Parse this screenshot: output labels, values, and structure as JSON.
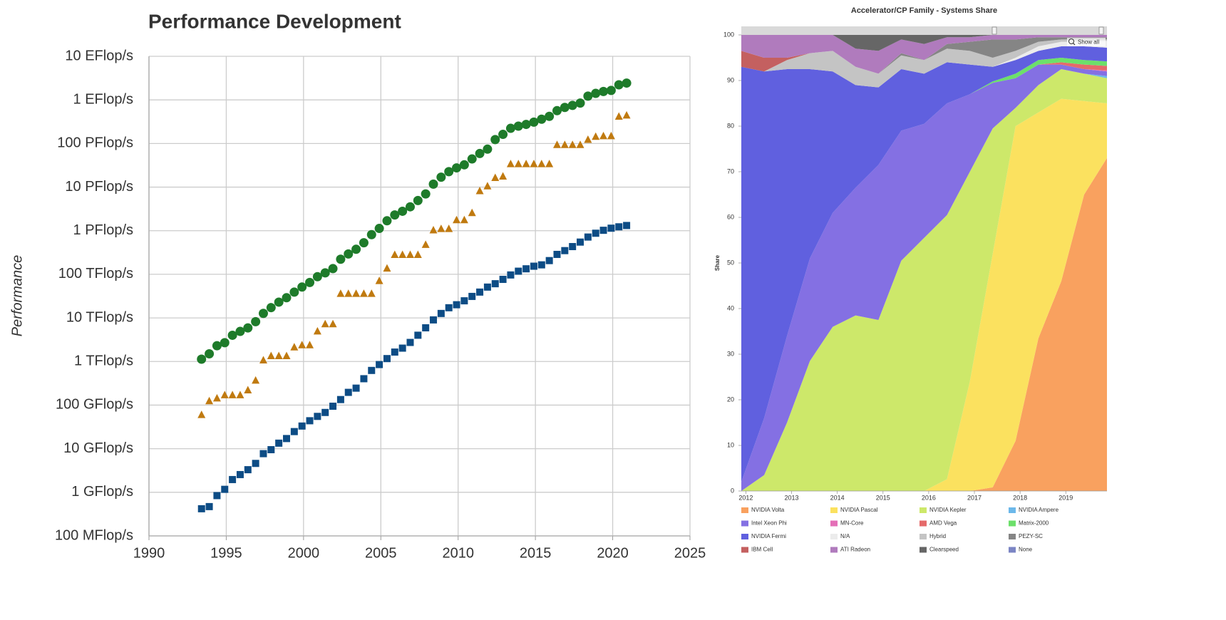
{
  "chart_data": [
    {
      "type": "scatter",
      "title": "Performance Development",
      "y_label": "Performance",
      "x": [
        1993.4,
        1993.9,
        1994.4,
        1994.9,
        1995.4,
        1995.9,
        1996.4,
        1996.9,
        1997.4,
        1997.9,
        1998.4,
        1998.9,
        1999.4,
        1999.9,
        2000.4,
        2000.9,
        2001.4,
        2001.9,
        2002.4,
        2002.9,
        2003.4,
        2003.9,
        2004.4,
        2004.9,
        2005.4,
        2005.9,
        2006.4,
        2006.9,
        2007.4,
        2007.9,
        2008.4,
        2008.9,
        2009.4,
        2009.9,
        2010.4,
        2010.9,
        2011.4,
        2011.9,
        2012.4,
        2012.9,
        2013.4,
        2013.9,
        2014.4,
        2014.9,
        2015.4,
        2015.9,
        2016.4,
        2016.9,
        2017.4,
        2017.9,
        2018.4,
        2018.9,
        2019.4,
        2019.9,
        2020.4,
        2020.9
      ],
      "series": [
        {
          "color": "#1e7b2a",
          "marker": "circle",
          "values": [
            1130000000000.0,
            1500000000000.0,
            2300000000000.0,
            2700000000000.0,
            4000000000000.0,
            4900000000000.0,
            5900000000000.0,
            8200000000000.0,
            12700000000000.0,
            17200000000000.0,
            23000000000000.0,
            29000000000000.0,
            39000000000000.0,
            51000000000000.0,
            65000000000000.0,
            88000000000000.0,
            108000000000000.0,
            135000000000000.0,
            222000000000000.0,
            293000000000000.0,
            375000000000000.0,
            529000000000000.0,
            813000000000000.0,
            1127000000000000.0,
            1690000000000000.0,
            2300000000000000.0,
            2790000000000000.0,
            3530000000000000.0,
            4920000000000000.0,
            6970000000000000.0,
            1.17e+16,
            1.69e+16,
            2.26e+16,
            2.76e+16,
            3.24e+16,
            4.42e+16,
            5.89e+16,
            7.42e+16,
            1.23e+17,
            1.62e+17,
            2.23e+17,
            2.5e+17,
            2.74e+17,
            3.09e+17,
            3.61e+17,
            4.2e+17,
            5.66e+17,
            6.72e+17,
            7.49e+17,
            8.45e+17,
            1.22e+18,
            1.41e+18,
            1.56e+18,
            1.65e+18,
            2.22e+18,
            2.43e+18
          ]
        },
        {
          "color": "#c07a10",
          "marker": "triangle",
          "values": [
            59700000000.0,
            124000000000.0,
            143700000000.0,
            170000000000.0,
            170000000000.0,
            170000000000.0,
            220400000000.0,
            368000000000.0,
            1068000000000.0,
            1338000000000.0,
            1338000000000.0,
            1338000000000.0,
            2121000000000.0,
            2379000000000.0,
            2379000000000.0,
            4938000000000.0,
            7226000000000.0,
            7226000000000.0,
            35860000000000.0,
            35860000000000.0,
            35860000000000.0,
            35860000000000.0,
            35860000000000.0,
            70720000000000.0,
            136800000000000.0,
            280600000000000.0,
            280600000000000.0,
            280600000000000.0,
            280600000000000.0,
            478200000000000.0,
            1026000000000000.0,
            1105000000000000.0,
            1105000000000000.0,
            1759000000000000.0,
            1759000000000000.0,
            2566000000000000.0,
            8162000000000000.0,
            1.051e+16,
            1.6324e+16,
            1.759e+16,
            3.3862e+16,
            3.3862e+16,
            3.3862e+16,
            3.3862e+16,
            3.3862e+16,
            3.3862e+16,
            9.3015e+16,
            9.3015e+16,
            9.3015e+16,
            9.3015e+16,
            1.223e+17,
            1.435e+17,
            1.486e+17,
            1.486e+17,
            4.1553e+17,
            4.4201e+17
          ]
        },
        {
          "color": "#0d4c85",
          "marker": "square",
          "values": [
            420000000.0,
            470000000.0,
            840000000.0,
            1170000000.0,
            1960000000.0,
            2550000000.0,
            3300000000.0,
            4600000000.0,
            7700000000.0,
            9500000000.0,
            13400000000.0,
            17100000000.0,
            24700000000.0,
            33100000000.0,
            43800000000.0,
            55100000000.0,
            67800000000.0,
            94300000000.0,
            134000000000.0,
            196000000000.0,
            245000000000.0,
            403000000000.0,
            624000000000.0,
            851000000000.0,
            1166000000000.0,
            1646000000000.0,
            2026000000000.0,
            2737000000000.0,
            4005000000000.0,
            5929000000000.0,
            9000000000000.0,
            12640000000000.0,
            17100000000000.0,
            20050000000000.0,
            24670000000000.0,
            31110000000000.0,
            39100000000000.0,
            50900000000000.0,
            60800000000000.0,
            76500000000000.0,
            96600000000000.0,
            117800000000000.0,
            133700000000000.0,
            153400000000000.0,
            164800000000000.0,
            206300000000000.0,
            286100000000000.0,
            349300000000000.0,
            432200000000000.0,
            548300000000000.0,
            715600000000000.0,
            874800000000000.0,
            1022000000000000.0,
            1142000000000000.0,
            1228000000000000.0,
            1317000000000000.0
          ]
        }
      ],
      "xlim": [
        1990,
        2025
      ],
      "xticks": [
        1990,
        1995,
        2000,
        2005,
        2010,
        2015,
        2020,
        2025
      ],
      "y_scale": "log",
      "ylim": [
        100000000.0,
        1e+19
      ],
      "yticks": [
        {
          "value": 100000000.0,
          "label": "100 MFlop/s"
        },
        {
          "value": 1000000000.0,
          "label": "1 GFlop/s"
        },
        {
          "value": 10000000000.0,
          "label": "10 GFlop/s"
        },
        {
          "value": 100000000000.0,
          "label": "100 GFlop/s"
        },
        {
          "value": 1000000000000.0,
          "label": "1 TFlop/s"
        },
        {
          "value": 10000000000000.0,
          "label": "10 TFlop/s"
        },
        {
          "value": 100000000000000.0,
          "label": "100 TFlop/s"
        },
        {
          "value": 1000000000000000.0,
          "label": "1 PFlop/s"
        },
        {
          "value": 1e+16,
          "label": "10 PFlop/s"
        },
        {
          "value": 1e+17,
          "label": "100 PFlop/s"
        },
        {
          "value": 1e+18,
          "label": "1 EFlop/s"
        },
        {
          "value": 1e+19,
          "label": "10 EFlop/s"
        }
      ],
      "grid": true
    },
    {
      "type": "area",
      "stacked": true,
      "title": "Accelerator/CP Family - Systems Share",
      "y_label": "Share",
      "reset_label": "Show all",
      "x": [
        2011.9,
        2012.4,
        2012.9,
        2013.4,
        2013.9,
        2014.4,
        2014.9,
        2015.4,
        2015.9,
        2016.4,
        2016.9,
        2017.4,
        2017.9,
        2018.4,
        2018.9,
        2019.4,
        2019.9
      ],
      "xlim": [
        2011.9,
        2019.9
      ],
      "xticks": [
        2012,
        2013,
        2014,
        2015,
        2016,
        2017,
        2018,
        2019
      ],
      "ylim": [
        0,
        100
      ],
      "yticks": [
        0,
        10,
        20,
        30,
        40,
        50,
        60,
        70,
        80,
        90,
        100
      ],
      "legend": "bottom",
      "series": [
        {
          "name": "NVIDIA Volta",
          "color": "#f9a15f",
          "values": [
            0,
            0,
            0,
            0,
            0,
            0,
            0,
            0,
            0,
            0,
            0,
            0.8,
            11,
            33.5,
            46,
            65,
            73
          ]
        },
        {
          "name": "NVIDIA Pascal",
          "color": "#fbe15f",
          "values": [
            0,
            0,
            0,
            0,
            0,
            0,
            0,
            0,
            0,
            2.6,
            24,
            51.2,
            69,
            49.5,
            40,
            20.5,
            12
          ]
        },
        {
          "name": "NVIDIA Kepler",
          "color": "#cde86a",
          "values": [
            0,
            3.5,
            15,
            28.5,
            36,
            38.5,
            37.5,
            50.5,
            55.5,
            57.9,
            46,
            27.5,
            4,
            6,
            6.5,
            6,
            5.5
          ]
        },
        {
          "name": "NVIDIA Ampere",
          "color": "#6cb8ea",
          "values": [
            0,
            0,
            0,
            0,
            0,
            0,
            0,
            0,
            0,
            0,
            0,
            0,
            0,
            0,
            0,
            0,
            0.5
          ]
        },
        {
          "name": "Intel Xeon Phi",
          "color": "#8470e3",
          "values": [
            2,
            12.5,
            19,
            22.5,
            25,
            28,
            34,
            28.5,
            25,
            24.5,
            17,
            10,
            6.5,
            4.5,
            1,
            1,
            1
          ]
        },
        {
          "name": "MN-Core",
          "color": "#e46fb7",
          "values": [
            0,
            0,
            0,
            0,
            0,
            0,
            0,
            0,
            0,
            0,
            0,
            0,
            0,
            0,
            0,
            0,
            0.2
          ]
        },
        {
          "name": "AMD Vega",
          "color": "#e56a6a",
          "values": [
            0,
            0,
            0,
            0,
            0,
            0,
            0,
            0,
            0,
            0,
            0,
            0,
            0,
            0,
            0.5,
            1,
            1
          ]
        },
        {
          "name": "Matrix-2000",
          "color": "#6ce06a",
          "values": [
            0,
            0,
            0,
            0,
            0,
            0,
            0,
            0,
            0,
            0,
            0,
            0.3,
            1,
            1,
            1,
            1,
            1
          ]
        },
        {
          "name": "NVIDIA Fermi",
          "color": "#6060df",
          "values": [
            91,
            76,
            58.5,
            41.5,
            31,
            22.5,
            17,
            13.5,
            11,
            9,
            6.5,
            3.2,
            3,
            2,
            2.5,
            3,
            3
          ]
        },
        {
          "name": "N/A",
          "color": "#ececec",
          "values": [
            0,
            0,
            0,
            0,
            0,
            0,
            0,
            0,
            0,
            0,
            0,
            0,
            0.5,
            1,
            1,
            1,
            1.5
          ]
        },
        {
          "name": "Hybrid",
          "color": "#c4c4c4",
          "values": [
            0,
            0,
            2,
            3.5,
            4.5,
            4,
            3,
            3,
            3,
            3,
            3,
            2,
            1.5,
            1,
            0.5,
            0.5,
            0.3
          ]
        },
        {
          "name": "PEZY-SC",
          "color": "#858585",
          "values": [
            0,
            0,
            0,
            0,
            0,
            0,
            0,
            0.5,
            0,
            1,
            2,
            4,
            2.5,
            1,
            0.5,
            0.5,
            0.5
          ]
        },
        {
          "name": "IBM Cell",
          "color": "#c46060",
          "values": [
            3.5,
            3,
            0.5,
            0,
            0,
            0,
            0,
            0,
            0,
            0,
            0,
            0,
            0,
            0,
            0,
            0,
            0
          ]
        },
        {
          "name": "ATI Radeon",
          "color": "#b07bbd",
          "values": [
            3.5,
            5,
            5,
            4,
            3.5,
            4,
            5,
            3,
            3.5,
            1.5,
            1,
            1,
            1,
            0.5,
            0.5,
            0.5,
            0.5
          ]
        },
        {
          "name": "Clearspeed",
          "color": "#666666",
          "values": [
            0,
            0,
            0,
            0,
            0,
            3,
            3.5,
            1,
            2,
            0.5,
            0.5,
            0,
            0,
            0,
            0,
            0,
            0
          ]
        },
        {
          "name": "None",
          "color": "#7b85c4",
          "values": [
            0,
            0,
            0,
            0,
            0,
            0,
            0,
            0,
            0,
            0,
            0,
            0,
            0,
            0,
            0,
            0,
            0
          ]
        }
      ]
    }
  ]
}
